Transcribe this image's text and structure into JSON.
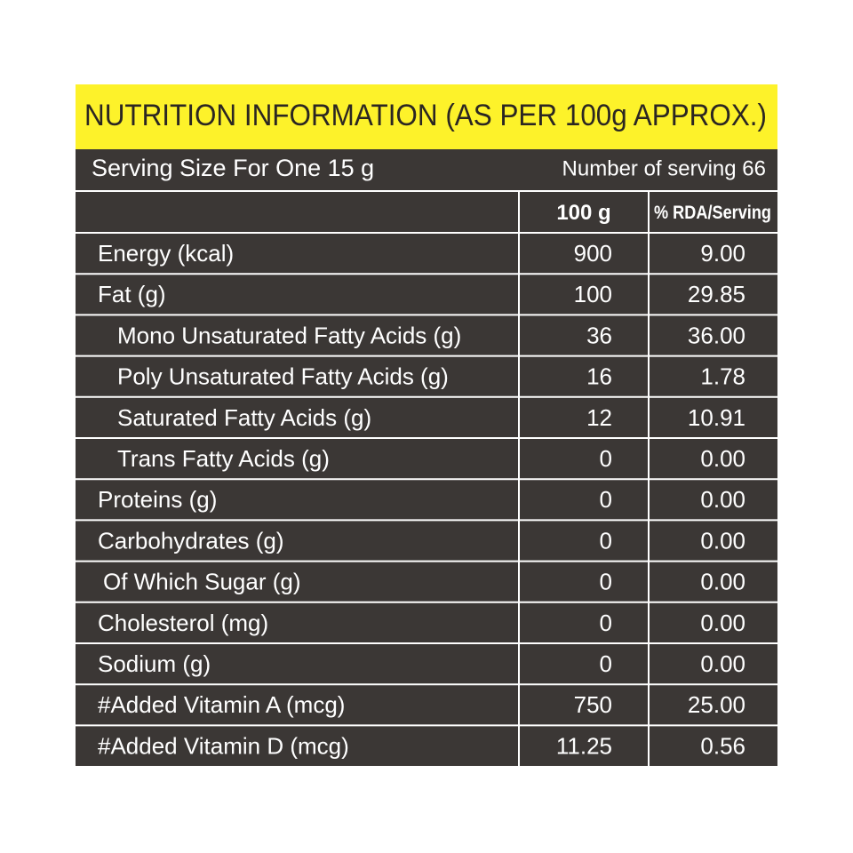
{
  "header": {
    "title": "NUTRITION INFORMATION (AS PER 100g APPROX.)"
  },
  "serving": {
    "size": "Serving Size For One 15 g",
    "count": "Number of serving 66"
  },
  "table": {
    "columns": [
      "100 g",
      "% RDA/Serving"
    ],
    "rows": [
      [
        "Energy (kcal)",
        "900",
        "9.00"
      ],
      [
        "Fat (g)",
        "100",
        "29.85"
      ],
      [
        "Mono Unsaturated Fatty Acids (g)",
        "36",
        "36.00"
      ],
      [
        "Poly Unsaturated Fatty Acids (g)",
        "16",
        "1.78"
      ],
      [
        "Saturated Fatty Acids (g)",
        "12",
        "10.91"
      ],
      [
        "Trans Fatty Acids (g)",
        "0",
        "0.00"
      ],
      [
        "Proteins (g)",
        "0",
        "0.00"
      ],
      [
        "Carbohydrates (g)",
        "0",
        "0.00"
      ],
      [
        "Of Which Sugar (g)",
        "0",
        "0.00"
      ],
      [
        "Cholesterol (mg)",
        "0",
        "0.00"
      ],
      [
        "Sodium (g)",
        "0",
        "0.00"
      ],
      [
        "#Added Vitamin A (mcg)",
        "750",
        "25.00"
      ],
      [
        "#Added Vitamin D (mcg)",
        "11.25",
        "0.56"
      ]
    ]
  }
}
